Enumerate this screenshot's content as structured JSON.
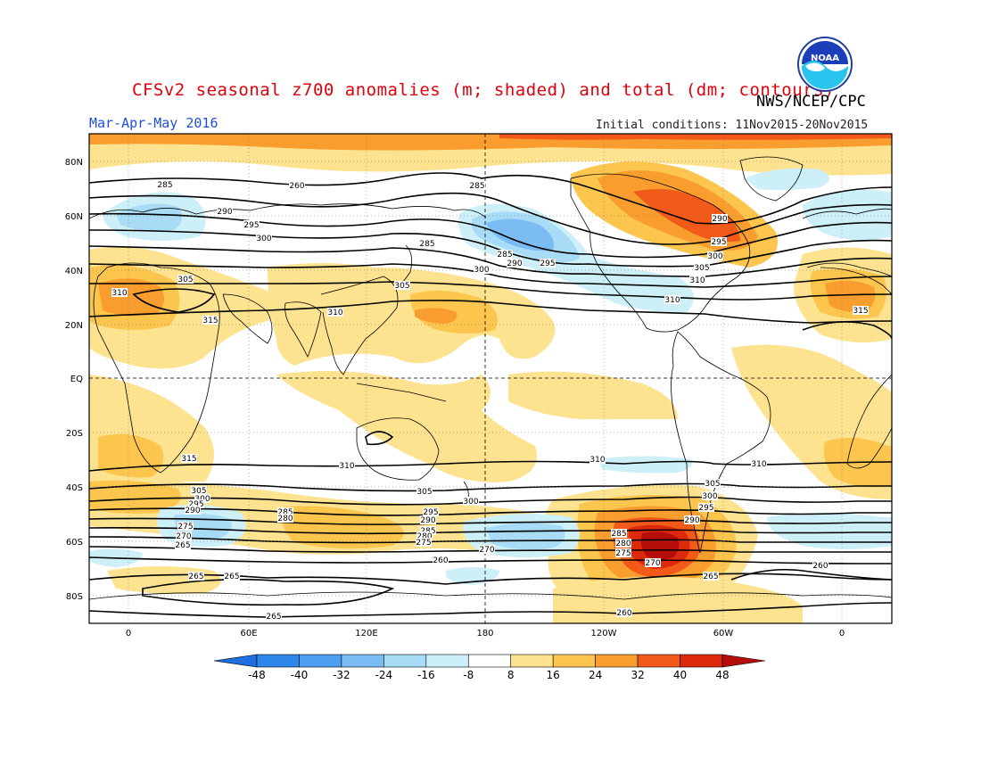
{
  "header": {
    "title": "CFSv2 seasonal z700 anomalies (m; shaded) and total (dm; contours)",
    "organization": "NWS/NCEP/CPC",
    "season": "Mar-Apr-May 2016",
    "initial_conditions": "Initial conditions: 11Nov2015-20Nov2015",
    "logo_text": "NOAA"
  },
  "axes": {
    "y_ticks": [
      "80N",
      "60N",
      "40N",
      "20N",
      "EQ",
      "20S",
      "40S",
      "60S",
      "80S"
    ],
    "x_ticks": [
      "0",
      "60E",
      "120E",
      "180",
      "120W",
      "60W",
      "0"
    ]
  },
  "colorbar": {
    "labels": [
      "-48",
      "-40",
      "-32",
      "-24",
      "-16",
      "-8",
      "8",
      "16",
      "24",
      "32",
      "40",
      "48"
    ],
    "colors": [
      "#1e6fe0",
      "#2f86ea",
      "#4d9ef0",
      "#7cbcf5",
      "#a8dcf6",
      "#cdeff8",
      "#ffffff",
      "#fde38f",
      "#fcc54e",
      "#f99d2e",
      "#f15a18",
      "#dd2a0c",
      "#b50e0a"
    ]
  },
  "shading_colors": {
    "y1": "#fde38f",
    "y2": "#fcc54e",
    "o1": "#f99d2e",
    "o2": "#f15a18",
    "r1": "#dd2a0c",
    "r2": "#b50e0a",
    "b1": "#cdeff8",
    "b2": "#a8dcf6",
    "b3": "#7cbcf5",
    "b4": "#4d9ef0"
  },
  "contour_labels": [
    "285",
    "260",
    "285",
    "290",
    "295",
    "300",
    "285",
    "290",
    "295",
    "300",
    "305",
    "310",
    "285",
    "290",
    "295",
    "300",
    "305",
    "310",
    "310",
    "305",
    "315",
    "310",
    "315",
    "315",
    "310",
    "310",
    "310",
    "305",
    "300",
    "295",
    "290",
    "285",
    "280",
    "275",
    "270",
    "265",
    "305",
    "300",
    "295",
    "290",
    "285",
    "280",
    "275",
    "270",
    "305",
    "300",
    "295",
    "290",
    "285",
    "280",
    "275",
    "270",
    "265",
    "260",
    "265",
    "265",
    "260",
    "260",
    "265"
  ]
}
